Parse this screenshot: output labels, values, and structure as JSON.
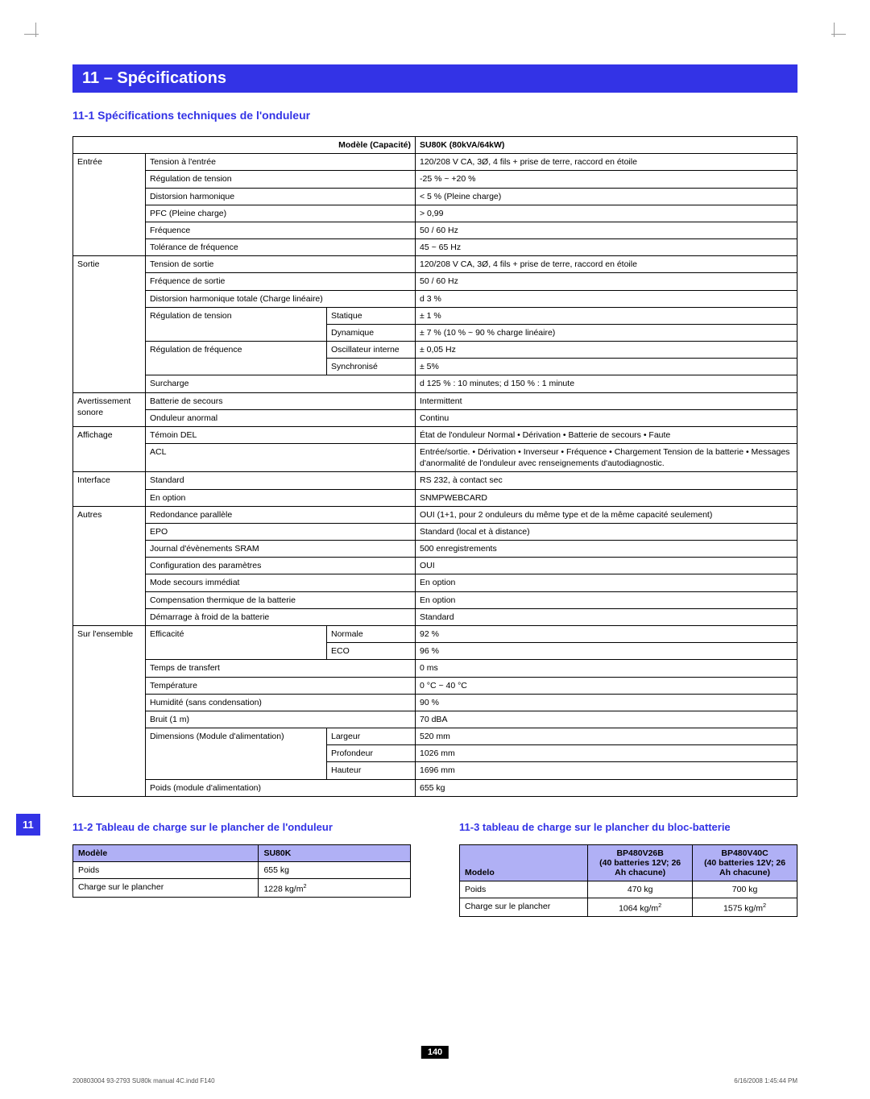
{
  "tab": "11",
  "header": "11 – Spécifications",
  "sub1": "11-1 Spécifications techniques de l'onduleur",
  "mainHeader": {
    "left": "Modèle (Capacité)",
    "right": "SU80K (80kVA/64kW)"
  },
  "rows": [
    {
      "group": "Entrée",
      "param": "Tension à l'entrée",
      "sub": "",
      "val": "120/208 V CA, 3Ø, 4 fils + prise de terre, raccord en étoile",
      "newGroup": true,
      "groupSpan": 6
    },
    {
      "param": "Régulation de tension",
      "sub": "",
      "val": "-25 % ~ +20 %"
    },
    {
      "param": "Distorsion harmonique",
      "sub": "",
      "val": "< 5 % (Pleine charge)"
    },
    {
      "param": "PFC (Pleine charge)",
      "sub": "",
      "val": "> 0,99"
    },
    {
      "param": "Fréquence",
      "sub": "",
      "val": "50 / 60 Hz"
    },
    {
      "param": "Tolérance de fréquence",
      "sub": "",
      "val": "45 ~ 65 Hz"
    },
    {
      "group": "Sortie",
      "param": "Tension de sortie",
      "sub": "",
      "val": "120/208 V CA, 3Ø, 4 fils + prise de terre, raccord en étoile",
      "newGroup": true,
      "groupSpan": 8
    },
    {
      "param": "Fréquence de sortie",
      "sub": "",
      "val": "50 / 60 Hz"
    },
    {
      "param": "Distorsion harmonique totale (Charge linéaire)",
      "sub": "",
      "val": "d 3 %"
    },
    {
      "param": "Régulation de tension",
      "paramSpan": 2,
      "sub": "Statique",
      "val": "± 1 %"
    },
    {
      "sub": "Dynamique",
      "val": "± 7 % (10 % ~ 90 % charge linéaire)"
    },
    {
      "param": "Régulation de fréquence",
      "paramSpan": 2,
      "sub": "Oscillateur interne",
      "val": "± 0,05 Hz"
    },
    {
      "sub": "Synchronisé",
      "val": "± 5%"
    },
    {
      "param": "Surcharge",
      "sub": "",
      "val": "d 125 % : 10 minutes; d 150 % : 1 minute"
    },
    {
      "group": "Avertissement sonore",
      "param": "Batterie de secours",
      "sub": "",
      "val": "Intermittent",
      "newGroup": true,
      "groupSpan": 2
    },
    {
      "param": "Onduleur anormal",
      "sub": "",
      "val": "Continu"
    },
    {
      "group": "Affichage",
      "param": "Témoin DEL",
      "sub": "",
      "val": "État de l'onduleur Normal • Dérivation • Batterie de secours • Faute",
      "newGroup": true,
      "groupSpan": 2
    },
    {
      "param": "ACL",
      "sub": "",
      "val": "Entrée/sortie. • Dérivation • Inverseur • Fréquence • Chargement Tension de la batterie • Messages d'anormalité de l'onduleur avec renseignements d'autodiagnostic."
    },
    {
      "group": "Interface",
      "param": "Standard",
      "sub": "",
      "val": "RS 232, à contact sec",
      "newGroup": true,
      "groupSpan": 2
    },
    {
      "param": "En option",
      "sub": "",
      "val": "SNMPWEBCARD"
    },
    {
      "group": "Autres",
      "param": "Redondance parallèle",
      "sub": "",
      "val": "OUI (1+1, pour 2 onduleurs du même type et de la même capacité seulement)",
      "newGroup": true,
      "groupSpan": 7
    },
    {
      "param": "EPO",
      "sub": "",
      "val": "Standard (local et à distance)"
    },
    {
      "param": "Journal d'évènements SRAM",
      "sub": "",
      "val": "500 enregistrements"
    },
    {
      "param": "Configuration des paramètres",
      "sub": "",
      "val": "OUI"
    },
    {
      "param": "Mode secours immédiat",
      "sub": "",
      "val": "En option"
    },
    {
      "param": "Compensation thermique de la batterie",
      "sub": "",
      "val": "En option"
    },
    {
      "param": "Démarrage à froid de la batterie",
      "sub": "",
      "val": "Standard"
    },
    {
      "group": "Sur l'ensemble",
      "param": "Efficacité",
      "paramSpan": 2,
      "sub": "Normale",
      "val": "92 %",
      "newGroup": true,
      "groupSpan": 10
    },
    {
      "sub": "ECO",
      "val": "96 %"
    },
    {
      "param": "Temps de transfert",
      "sub": "",
      "val": "0 ms"
    },
    {
      "param": "Température",
      "sub": "",
      "val": "0 °C ~ 40 °C"
    },
    {
      "param": "Humidité (sans condensation)",
      "sub": "",
      "val": "90 %"
    },
    {
      "param": "Bruit (1 m)",
      "sub": "",
      "val": "70 dBA"
    },
    {
      "param": "Dimensions (Module d'alimentation)",
      "paramSpan": 3,
      "sub": "Largeur",
      "val": "520 mm"
    },
    {
      "sub": "Profondeur",
      "val": "1026 mm"
    },
    {
      "sub": "Hauteur",
      "val": "1696 mm"
    },
    {
      "param": "Poids (module d'alimentation)",
      "sub": "",
      "val": "655 kg"
    }
  ],
  "sub2": "11-2 Tableau de charge sur le plancher de l'onduleur",
  "table2": {
    "h1": "Modèle",
    "h2": "SU80K",
    "r1a": "Poids",
    "r1b": "655 kg",
    "r2a": "Charge sur le plancher",
    "r2b": "1228 kg/m",
    "r2sup": "2"
  },
  "sub3": "11-3 tableau de charge sur le plancher du bloc-batterie",
  "table3": {
    "h1": "Modelo",
    "h2": "BP480V26B",
    "h2b": "(40 batteries 12V; 26 Ah chacune)",
    "h3": "BP480V40C",
    "h3b": "(40 batteries 12V; 26 Ah chacune)",
    "r1a": "Poids",
    "r1b": "470 kg",
    "r1c": "700 kg",
    "r2a": "Charge sur le plancher",
    "r2b": "1064 kg/m",
    "r2c": "1575 kg/m",
    "sup": "2"
  },
  "pageNum": "140",
  "footerLeft": "200803004 93-2793 SU80k manual 4C.indd   F140",
  "footerRight": "6/16/2008   1:45:44 PM"
}
